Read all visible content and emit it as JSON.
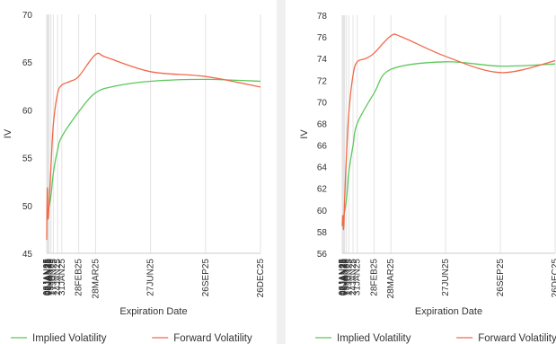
{
  "chart_data": [
    {
      "type": "line",
      "xlabel": "Expiration Date",
      "ylabel": "IV",
      "ylim": [
        45,
        70
      ],
      "yticks": [
        "70",
        "65",
        "60",
        "55",
        "50",
        "45"
      ],
      "xticks": [
        "06JAN25",
        "07JAN25",
        "08JAN25",
        "09JAN25",
        "10JAN25",
        "13JAN25",
        "17JAN25",
        "24JAN25",
        "31JAN25",
        "28FEB25",
        "28MAR25",
        "27JUN25",
        "26SEP25",
        "26DEC25"
      ],
      "legend": "bottom",
      "grid": "vertical",
      "series": [
        {
          "name": "Implied Volatility",
          "color": "#5cc85c",
          "x": [
            "06JAN25",
            "08JAN25",
            "13JAN25",
            "17JAN25",
            "24JAN25",
            "31JAN25",
            "28FEB25",
            "28MAR25",
            "30APR25",
            "27JUN25",
            "26SEP25",
            "26DEC25"
          ],
          "y": [
            48.4,
            49.2,
            51.0,
            53.4,
            55.8,
            57.2,
            59.8,
            61.8,
            62.5,
            63.0,
            63.2,
            63.0
          ]
        },
        {
          "name": "Forward Volatility",
          "color": "#f06a4a",
          "x": [
            "06JAN25",
            "07JAN25",
            "08JAN25",
            "09JAN25",
            "10JAN25",
            "13JAN25",
            "17JAN25",
            "24JAN25",
            "31JAN25",
            "14FEB25",
            "28FEB25",
            "28MAR25",
            "15APR25",
            "27JUN25",
            "26SEP25",
            "26DEC25"
          ],
          "y": [
            46.4,
            51.8,
            48.8,
            49.0,
            50.2,
            54.0,
            58.5,
            61.7,
            62.6,
            63.0,
            63.5,
            65.8,
            65.5,
            64.0,
            63.5,
            62.4
          ]
        }
      ]
    },
    {
      "type": "line",
      "xlabel": "Expiration Date",
      "ylabel": "IV",
      "ylim": [
        56,
        78
      ],
      "yticks": [
        "78",
        "76",
        "74",
        "72",
        "70",
        "68",
        "66",
        "64",
        "62",
        "60",
        "58",
        "56"
      ],
      "xticks": [
        "06JAN25",
        "07JAN25",
        "08JAN25",
        "09JAN25",
        "10JAN25",
        "13JAN25",
        "17JAN25",
        "24JAN25",
        "31JAN25",
        "28FEB25",
        "28MAR25",
        "27JUN25",
        "26SEP25",
        "26DEC25"
      ],
      "legend": "bottom",
      "grid": "vertical",
      "series": [
        {
          "name": "Implied Volatility",
          "color": "#5cc85c",
          "x": [
            "06JAN25",
            "08JAN25",
            "13JAN25",
            "17JAN25",
            "24JAN25",
            "31JAN25",
            "28FEB25",
            "28MAR25",
            "27JUN25",
            "26SEP25",
            "26DEC25"
          ],
          "y": [
            58.5,
            59.2,
            61.0,
            63.5,
            66.0,
            68.0,
            70.8,
            73.0,
            73.7,
            73.3,
            73.5
          ]
        },
        {
          "name": "Forward Volatility",
          "color": "#f06a4a",
          "x": [
            "06JAN25",
            "07JAN25",
            "08JAN25",
            "09JAN25",
            "10JAN25",
            "13JAN25",
            "17JAN25",
            "24JAN25",
            "31JAN25",
            "14FEB25",
            "28FEB25",
            "28MAR25",
            "15APR25",
            "27JUN25",
            "26SEP25",
            "26DEC25"
          ],
          "y": [
            58.6,
            59.5,
            58.2,
            59.0,
            61.0,
            65.0,
            69.0,
            72.5,
            73.7,
            74.0,
            74.5,
            76.1,
            76.0,
            74.2,
            72.7,
            73.8
          ]
        }
      ]
    }
  ]
}
